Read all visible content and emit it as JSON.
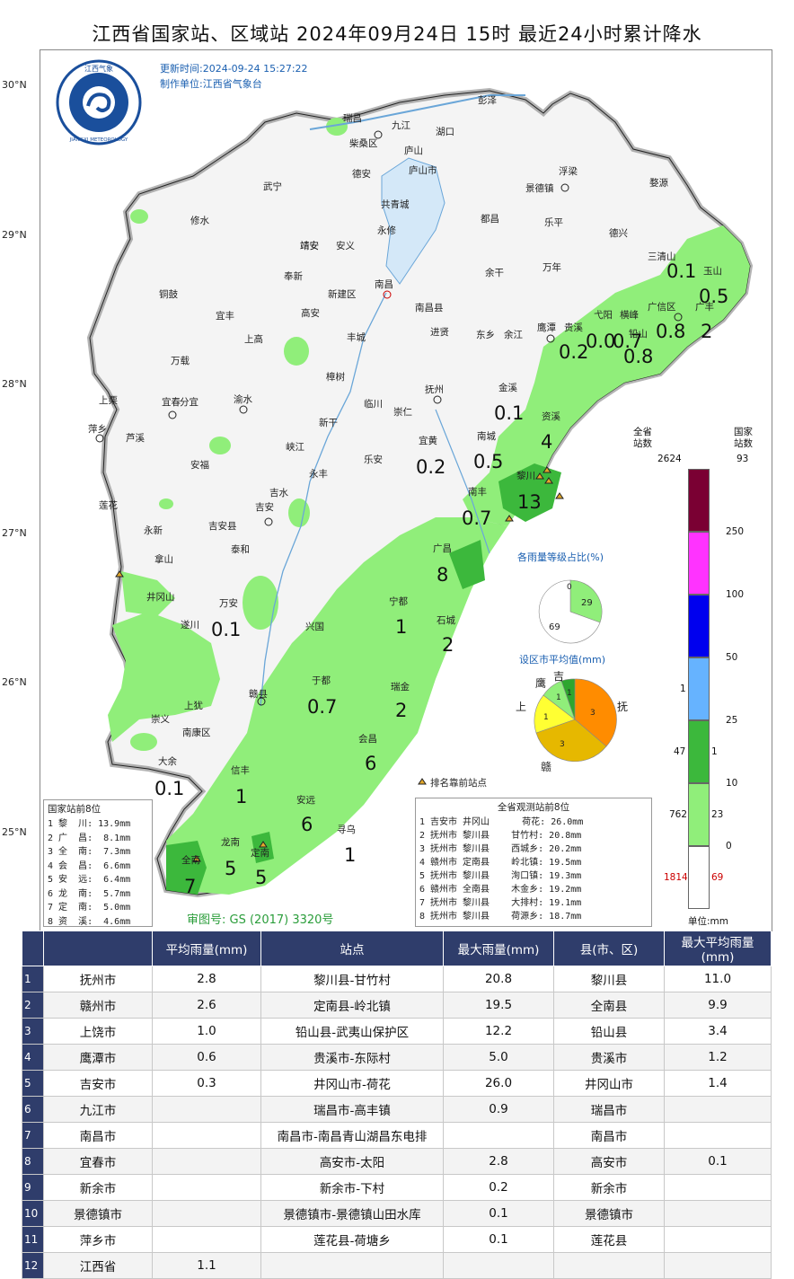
{
  "title": "江西省国家站、区域站   2024年09月24日 15时   最近24小时累计降水",
  "update_time": "更新时间:2024-09-24 15:27:22",
  "producer": "制作单位:江西省气象台",
  "logo": {
    "top_text": "江西气象",
    "bottom_text": "JIANGXI METEOROLOGY"
  },
  "review_no": "审图号: GS (2017) 3320号",
  "lat_labels": [
    "30°N",
    "29°N",
    "28°N",
    "27°N",
    "26°N",
    "25°N"
  ],
  "places": [
    "彭泽",
    "瑞昌",
    "九江",
    "湖口",
    "柴桑区",
    "庐山",
    "德安",
    "庐山市",
    "武宁",
    "共青城",
    "浮梁",
    "景德镇",
    "婺源",
    "修水",
    "永修",
    "都昌",
    "乐平",
    "德兴",
    "靖安",
    "安义",
    "奉新",
    "靖安",
    "铜鼓",
    "新建区",
    "南昌",
    "南昌县",
    "万年",
    "余干",
    "三清山",
    "玉山",
    "宜丰",
    "高安",
    "丰城",
    "进贤",
    "东乡",
    "余江",
    "鹰潭",
    "贵溪",
    "弋阳",
    "横峰",
    "铅山",
    "广信区",
    "广丰",
    "上高",
    "万载",
    "樟树",
    "临川",
    "抚州",
    "金溪",
    "资溪",
    "宜春",
    "分宜",
    "渝水",
    "新干",
    "崇仁",
    "萍乡",
    "上栗",
    "芦溪",
    "安福",
    "峡江",
    "乐安",
    "宜黄",
    "南城",
    "黎川",
    "永丰",
    "莲花",
    "吉水",
    "吉安",
    "吉安县",
    "南丰",
    "永新",
    "泰和",
    "广昌",
    "井冈山",
    "拿山",
    "宁都",
    "遂川",
    "万安",
    "兴国",
    "石城",
    "于都",
    "赣县",
    "瑞金",
    "上犹",
    "崇义",
    "南康区",
    "会昌",
    "大余",
    "信丰",
    "安远",
    "寻乌",
    "龙南",
    "定南",
    "全南"
  ],
  "values": [
    "0.1",
    "0.5",
    "0.2",
    "0.0",
    "0.7",
    "0.8",
    "0.8",
    "2",
    "0.1",
    "4",
    "0.2",
    "0.5",
    "13",
    "0.7",
    "8",
    "1",
    "0.1",
    "2",
    "0.7",
    "2",
    "6",
    "0.1",
    "1",
    "6",
    "1",
    "5",
    "5",
    "7"
  ],
  "ranking_legend": "排名靠前站点",
  "national_top8": {
    "title": "国家站前8位",
    "rows": [
      "1 黎  川: 13.9mm",
      "2 广  昌:  8.1mm",
      "3 全  南:  7.3mm",
      "4 会  昌:  6.6mm",
      "5 安  远:  6.4mm",
      "6 龙  南:  5.7mm",
      "7 定  南:  5.0mm",
      "8 资  溪:  4.6mm"
    ]
  },
  "province_top8": {
    "title": "全省观测站前8位",
    "rows": [
      "1 吉安市 井冈山      荷花: 26.0mm",
      "2 抚州市 黎川县    甘竹村: 20.8mm",
      "3 抚州市 黎川县    西城乡: 20.2mm",
      "4 赣州市 定南县    岭北镇: 19.5mm",
      "5 抚州市 黎川县    洵口镇: 19.3mm",
      "6 赣州市 全南县    木金乡: 19.2mm",
      "7 抚州市 黎川县    大排村: 19.1mm",
      "8 抚州市 黎川县    荷源乡: 18.7mm"
    ]
  },
  "pie1": {
    "title": "各雨量等级占比(%)",
    "labels": [
      "0",
      "29",
      "69"
    ],
    "colors": [
      "#ffffff",
      "#90ee7a",
      "#3cb83c"
    ]
  },
  "pie2": {
    "title": "设区市平均值(mm)",
    "labels": [
      "吉",
      "鹰",
      "上",
      "抚",
      "赣",
      "1",
      "1",
      "1",
      "3",
      "3"
    ],
    "colors": [
      "#2ea62e",
      "#90ee7a",
      "#ffff33",
      "#ff8c00",
      "#e6b800"
    ]
  },
  "scale": {
    "header_all": "全省\n站数",
    "header_nat": "国家\n站数",
    "total_all": "2624",
    "total_nat": "93",
    "thresholds": [
      "250",
      "100",
      "50",
      "25",
      "10",
      "0"
    ],
    "all_counts": [
      "",
      "",
      "",
      "1",
      "47",
      "762",
      "1814"
    ],
    "nat_counts": [
      "",
      "",
      "",
      "",
      "1",
      "23",
      "69"
    ],
    "colors": [
      "#7a0033",
      "#ff33ff",
      "#0000ee",
      "#66b3ff",
      "#3cb83c",
      "#90ee7a",
      "#ffffff"
    ],
    "unit": "单位:mm"
  },
  "table": {
    "headers": [
      "",
      "平均雨量(mm)",
      "站点",
      "最大雨量(mm)",
      "县(市、区)",
      "最大平均雨量(mm)"
    ],
    "rows": [
      [
        "1",
        "抚州市",
        "2.8",
        "黎川县-甘竹村",
        "20.8",
        "黎川县",
        "11.0"
      ],
      [
        "2",
        "赣州市",
        "2.6",
        "定南县-岭北镇",
        "19.5",
        "全南县",
        "9.9"
      ],
      [
        "3",
        "上饶市",
        "1.0",
        "铅山县-武夷山保护区",
        "12.2",
        "铅山县",
        "3.4"
      ],
      [
        "4",
        "鹰潭市",
        "0.6",
        "贵溪市-东际村",
        "5.0",
        "贵溪市",
        "1.2"
      ],
      [
        "5",
        "吉安市",
        "0.3",
        "井冈山市-荷花",
        "26.0",
        "井冈山市",
        "1.4"
      ],
      [
        "6",
        "九江市",
        "",
        "瑞昌市-高丰镇",
        "0.9",
        "瑞昌市",
        ""
      ],
      [
        "7",
        "南昌市",
        "",
        "南昌市-南昌青山湖昌东电排",
        "",
        "南昌市",
        ""
      ],
      [
        "8",
        "宜春市",
        "",
        "高安市-太阳",
        "2.8",
        "高安市",
        "0.1"
      ],
      [
        "9",
        "新余市",
        "",
        "新余市-下村",
        "0.2",
        "新余市",
        ""
      ],
      [
        "10",
        "景德镇市",
        "",
        "景德镇市-景德镇山田水库",
        "0.1",
        "景德镇市",
        ""
      ],
      [
        "11",
        "萍乡市",
        "",
        "莲花县-荷塘乡",
        "0.1",
        "莲花县",
        ""
      ],
      [
        "12",
        "江西省",
        "1.1",
        "",
        "",
        "",
        ""
      ]
    ]
  }
}
